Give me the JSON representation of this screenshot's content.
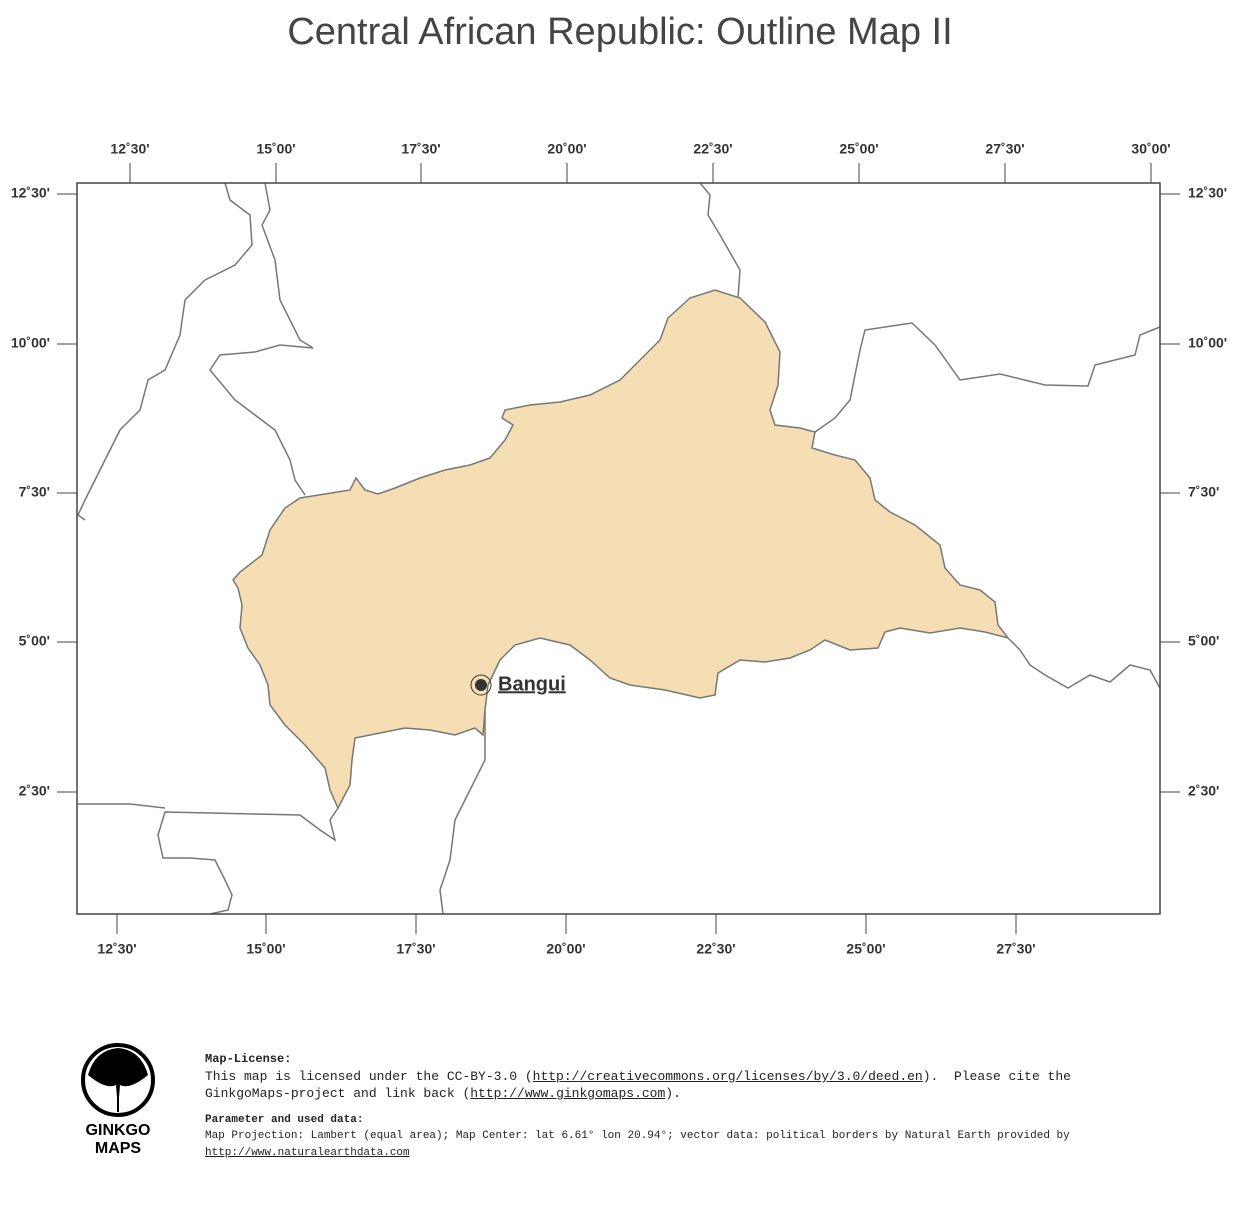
{
  "title": "Central African Republic: Outline Map II",
  "map": {
    "top_labels": [
      "12˚30'",
      "15˚00'",
      "17˚30'",
      "20˚00'",
      "22˚30'",
      "25˚00'",
      "27˚30'",
      "30˚00'"
    ],
    "bottom_labels": [
      "12˚30'",
      "15˚00'",
      "17˚30'",
      "20˚00'",
      "22˚30'",
      "25˚00'",
      "27˚30'"
    ],
    "left_labels": [
      "12˚30'",
      "10˚00'",
      "7˚30'",
      "5˚00'",
      "2˚30'"
    ],
    "right_labels": [
      "12˚30'",
      "10˚00'",
      "7˚30'",
      "5˚00'",
      "2˚30'"
    ],
    "city": "Bangui"
  },
  "logo": {
    "line_1": "GINKGO",
    "line_2": "MAPS"
  },
  "license": {
    "heading": "Map-License:",
    "text_1": "This map is licensed under the CC-BY-3.0 (",
    "link_1": "http://creativecommons.org/licenses/by/3.0/deed.en",
    "text_2": ").  Please cite the GinkgoMaps-project and link back (",
    "link_2": "http://www.ginkgomaps.com",
    "text_3": ")."
  },
  "parameters": {
    "heading": "Parameter and used data:",
    "text": "Map Projection: Lambert (equal area); Map Center: lat 6.61° lon 20.94°; vector data: political borders by Natural Earth provided by",
    "link": "http://www.naturalearthdata.com"
  }
}
